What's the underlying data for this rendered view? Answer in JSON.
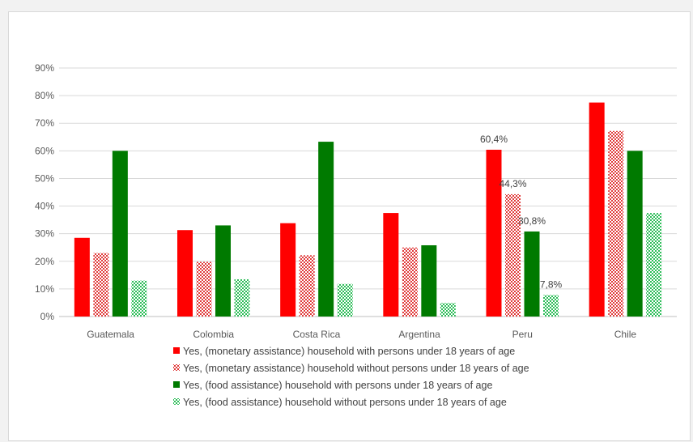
{
  "chart_data": {
    "type": "bar",
    "title": "",
    "xlabel": "",
    "ylabel": "",
    "ylim": [
      0,
      90
    ],
    "yticks": [
      "0%",
      "10%",
      "20%",
      "30%",
      "40%",
      "50%",
      "60%",
      "70%",
      "80%",
      "90%"
    ],
    "grid": true,
    "legend_position": "bottom",
    "categories": [
      "Guatemala",
      "Colombia",
      "Costa Rica",
      "Argentina",
      "Peru",
      "Chile"
    ],
    "series": [
      {
        "name": "Yes, (monetary assistance) household with persons under 18 years of age",
        "color": "#ff0000",
        "pattern": "solid",
        "values": [
          28.5,
          31.3,
          33.8,
          37.5,
          60.4,
          77.5
        ]
      },
      {
        "name": "Yes, (monetary assistance) household without persons under 18 years of age",
        "color": "#e03c3c",
        "pattern": "checker",
        "values": [
          23.0,
          19.8,
          22.2,
          25.0,
          44.3,
          67.2
        ]
      },
      {
        "name": "Yes, (food assistance) household with persons under 18 years of age",
        "color": "#007a00",
        "pattern": "solid",
        "values": [
          60.0,
          33.0,
          63.3,
          25.8,
          30.8,
          60.0
        ]
      },
      {
        "name": "Yes, (food assistance) household without persons under 18 years of age",
        "color": "#2ebd59",
        "pattern": "checker",
        "values": [
          13.0,
          13.5,
          11.8,
          4.9,
          7.8,
          37.5
        ]
      }
    ],
    "data_labels": [
      {
        "category": "Peru",
        "series": 0,
        "text": "60,4%"
      },
      {
        "category": "Peru",
        "series": 1,
        "text": "44,3%"
      },
      {
        "category": "Peru",
        "series": 2,
        "text": "30,8%"
      },
      {
        "category": "Peru",
        "series": 3,
        "text": "7,8%"
      }
    ]
  }
}
